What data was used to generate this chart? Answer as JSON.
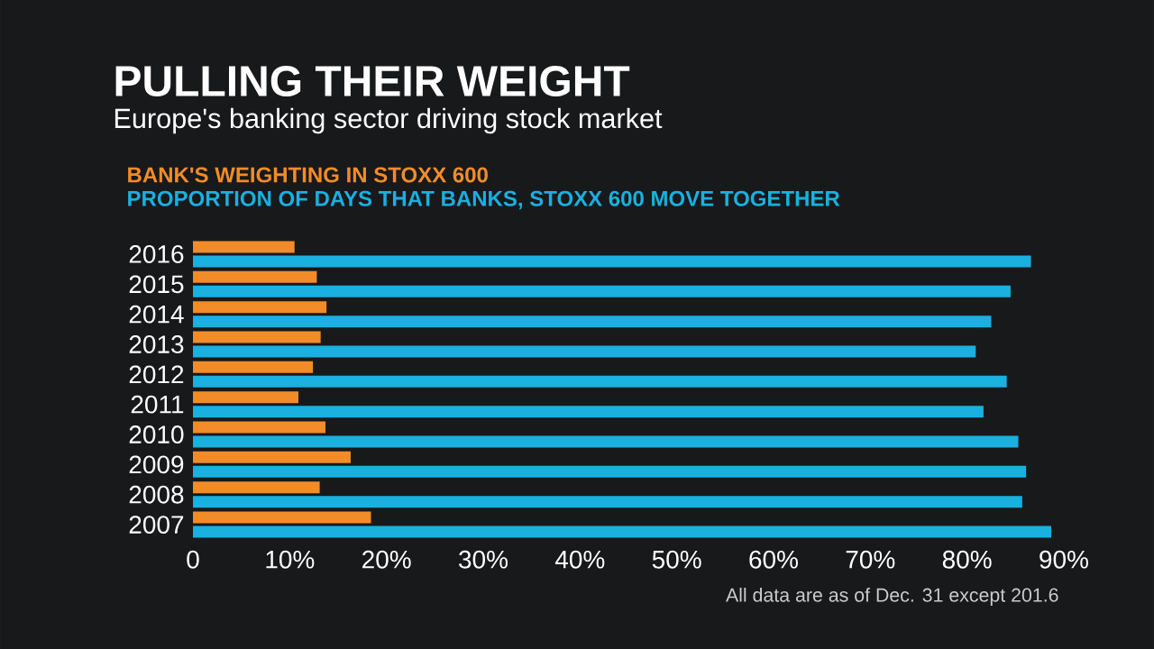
{
  "chart_data": {
    "type": "bar",
    "orientation": "horizontal",
    "title": "PULLING THEIR WEIGHT",
    "subtitle": "Europe's banking sector driving stock market",
    "categories": [
      "2016",
      "2015",
      "2014",
      "2013",
      "2012",
      "2011",
      "2010",
      "2009",
      "2008",
      "2007"
    ],
    "series": [
      {
        "name": "BANK'S WEIGHTING IN STOXX 600",
        "color": "#f28c28",
        "values": [
          10.5,
          12.8,
          13.8,
          13.2,
          12.4,
          10.9,
          13.7,
          16.3,
          13.1,
          18.4
        ]
      },
      {
        "name": "PROPORTION OF DAYS THAT BANKS, STOXX 600 MOVE TOGETHER",
        "color": "#1ab0e0",
        "values": [
          86.6,
          84.5,
          82.5,
          80.9,
          84.1,
          81.7,
          85.3,
          86.1,
          85.7,
          88.7
        ]
      }
    ],
    "xlim": [
      0,
      90
    ],
    "xticks": [
      {
        "value": 0,
        "label": "0"
      },
      {
        "value": 10,
        "label": "10%"
      },
      {
        "value": 20,
        "label": "20%"
      },
      {
        "value": 30,
        "label": "30%"
      },
      {
        "value": 40,
        "label": "40%"
      },
      {
        "value": 50,
        "label": "50%"
      },
      {
        "value": 60,
        "label": "60%"
      },
      {
        "value": 70,
        "label": "70%"
      },
      {
        "value": 80,
        "label": "80%"
      },
      {
        "value": 90,
        "label": "90%"
      }
    ],
    "legend": "top left",
    "annotations": [
      "All data are as of Dec. 31 except 201.6"
    ]
  }
}
